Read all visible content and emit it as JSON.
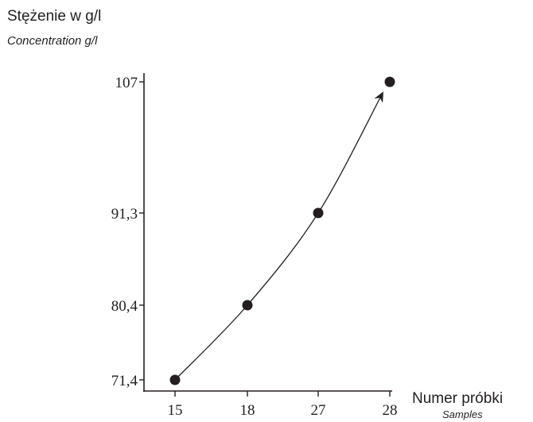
{
  "chart_data": {
    "type": "line",
    "y_title": "Stężenie w g/l",
    "y_subtitle": "Concentration g/l",
    "x_title": "Numer próbki",
    "x_subtitle": "Samples",
    "x_ticks": [
      "15",
      "18",
      "27",
      "28"
    ],
    "y_ticks": [
      "71,4",
      "80,4",
      "91,3",
      "107"
    ],
    "series": [
      {
        "points": [
          {
            "x": "15",
            "y": 71.4
          },
          {
            "x": "18",
            "y": 80.4
          },
          {
            "x": "27",
            "y": 91.3
          },
          {
            "x": "28",
            "y": 107
          }
        ]
      }
    ],
    "arrow_at_end": true,
    "grid": false,
    "colors": {
      "ink": "#231f20",
      "background": "#ffffff"
    }
  }
}
